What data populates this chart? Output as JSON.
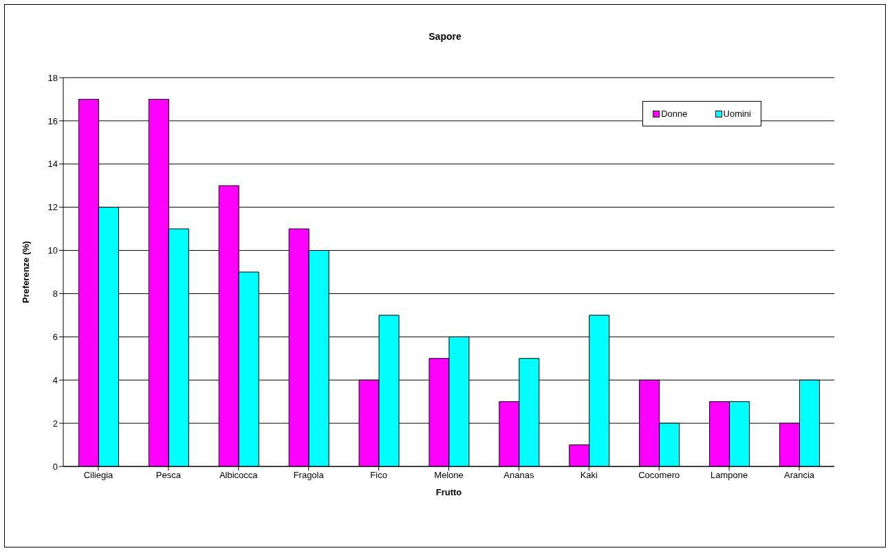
{
  "chart_data": {
    "type": "bar",
    "title": "Sapore",
    "xlabel": "Frutto",
    "ylabel": "Preferenze (%)",
    "categories": [
      "Ciliegia",
      "Pesca",
      "Albicocca",
      "Fragola",
      "Fico",
      "Melone",
      "Ananas",
      "Kaki",
      "Cocomero",
      "Lampone",
      "Arancia"
    ],
    "series": [
      {
        "name": "Donne",
        "color": "#ff00ff",
        "values": [
          17,
          17,
          13,
          11,
          4,
          5,
          3,
          1,
          4,
          3,
          2
        ]
      },
      {
        "name": "Uomini",
        "color": "#00ffff",
        "values": [
          12,
          11,
          9,
          10,
          7,
          6,
          5,
          7,
          2,
          3,
          4
        ]
      }
    ],
    "ylim": [
      0,
      18
    ],
    "yticks": [
      0,
      2,
      4,
      6,
      8,
      10,
      12,
      14,
      16,
      18
    ],
    "grid": "y",
    "legend": "top right"
  }
}
